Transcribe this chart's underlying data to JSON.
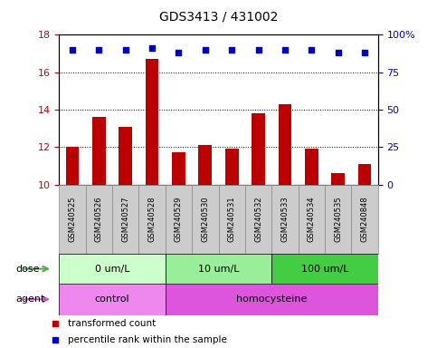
{
  "title": "GDS3413 / 431002",
  "samples": [
    "GSM240525",
    "GSM240526",
    "GSM240527",
    "GSM240528",
    "GSM240529",
    "GSM240530",
    "GSM240531",
    "GSM240532",
    "GSM240533",
    "GSM240534",
    "GSM240535",
    "GSM240848"
  ],
  "bar_values": [
    12.0,
    13.6,
    13.1,
    16.7,
    11.7,
    12.1,
    11.9,
    13.8,
    14.3,
    11.9,
    10.6,
    11.1
  ],
  "percentile_pct": [
    90,
    90,
    90,
    91,
    88,
    90,
    90,
    90,
    90,
    90,
    88,
    88
  ],
  "ylim_left": [
    10,
    18
  ],
  "yticks_left": [
    10,
    12,
    14,
    16,
    18
  ],
  "ytick_labels_right": [
    "0",
    "25",
    "50",
    "75",
    "100%"
  ],
  "bar_color": "#bb0000",
  "dot_color": "#0000bb",
  "dose_groups": [
    {
      "label": "0 um/L",
      "start": 0,
      "end": 4,
      "color": "#ccffcc"
    },
    {
      "label": "10 um/L",
      "start": 4,
      "end": 8,
      "color": "#99ee99"
    },
    {
      "label": "100 um/L",
      "start": 8,
      "end": 12,
      "color": "#44cc44"
    }
  ],
  "agent_groups": [
    {
      "label": "control",
      "start": 0,
      "end": 4,
      "color": "#ee88ee"
    },
    {
      "label": "homocysteine",
      "start": 4,
      "end": 12,
      "color": "#dd55dd"
    }
  ],
  "sample_bg_color": "#cccccc",
  "sample_border_color": "#888888",
  "dose_label": "dose",
  "agent_label": "agent",
  "left_tick_color": "#cc0000",
  "right_tick_color": "#0000cc",
  "arrow_dose_color": "#55aa55",
  "arrow_agent_color": "#bb55bb"
}
